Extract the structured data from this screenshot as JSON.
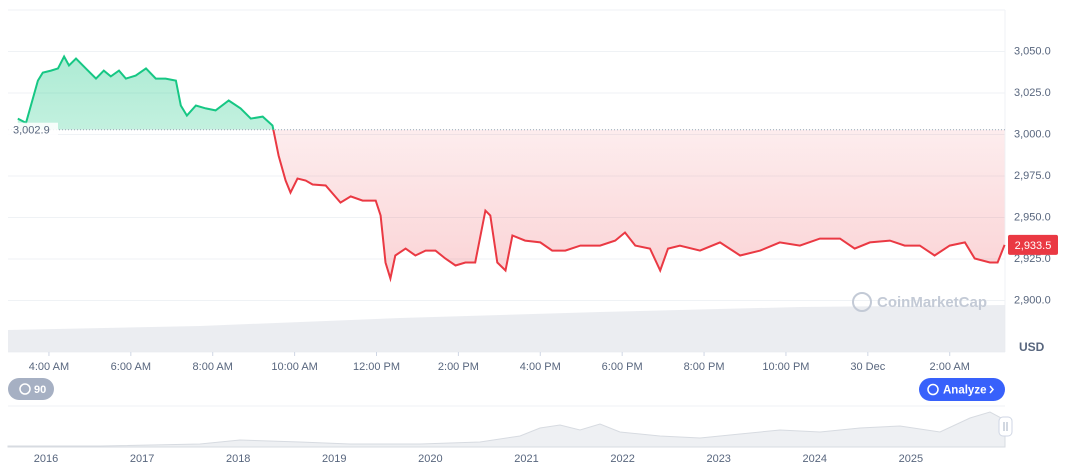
{
  "chart_data": {
    "type": "baseline-line",
    "x": [
      3.24,
      3.44,
      3.73,
      3.85,
      4.05,
      4.22,
      4.37,
      4.49,
      4.66,
      4.9,
      5.15,
      5.34,
      5.51,
      5.71,
      5.88,
      6.12,
      6.37,
      6.61,
      6.85,
      7.1,
      7.22,
      7.37,
      7.59,
      7.83,
      8.07,
      8.39,
      8.68,
      8.93,
      9.22,
      9.46,
      9.61,
      9.78,
      9.9,
      10.07,
      10.27,
      10.44,
      10.76,
      11.12,
      11.37,
      11.66,
      11.98,
      12.1,
      12.22,
      12.34,
      12.46,
      12.71,
      12.95,
      13.2,
      13.44,
      13.68,
      13.93,
      14.17,
      14.41,
      14.66,
      14.78,
      14.95,
      15.15,
      15.32,
      15.63,
      16.0,
      16.29,
      16.61,
      16.98,
      17.46,
      17.83,
      18.07,
      18.32,
      18.68,
      18.93,
      19.12,
      19.41,
      19.9,
      20.39,
      20.88,
      21.37,
      21.85,
      22.34,
      22.83,
      23.32,
      23.68,
      24.05,
      24.54,
      24.9,
      25.27,
      25.63,
      26.0,
      26.37,
      26.61,
      26.98,
      27.17,
      27.34
    ],
    "values": [
      3009.6,
      3007,
      3032.5,
      3037.3,
      3038.5,
      3039.8,
      3047,
      3041.6,
      3045.8,
      3039.8,
      3033.7,
      3038.5,
      3035,
      3038.5,
      3033.7,
      3035.5,
      3039.8,
      3033.7,
      3033.7,
      3032.5,
      3017.5,
      3011.4,
      3017.5,
      3015.7,
      3014.5,
      3020.5,
      3015.7,
      3009.6,
      3010.8,
      3005.4,
      2987.3,
      2972.3,
      2965,
      2973.5,
      2972.3,
      2969.9,
      2969.3,
      2959,
      2962.7,
      2960.2,
      2960.2,
      2951.2,
      2922.9,
      2913.3,
      2927.1,
      2931.3,
      2927.1,
      2930.1,
      2930.1,
      2925.3,
      2921.1,
      2922.9,
      2922.9,
      2954.2,
      2951.2,
      2922.9,
      2918.1,
      2939.2,
      2936.1,
      2935,
      2930.1,
      2930.1,
      2933.1,
      2933.1,
      2936.1,
      2941,
      2933.1,
      2931.3,
      2918.1,
      2931.3,
      2933.1,
      2930.1,
      2935,
      2927.1,
      2930.1,
      2935,
      2933.1,
      2937.3,
      2937.3,
      2931.3,
      2935,
      2936.1,
      2933.1,
      2933.1,
      2927.1,
      2933.1,
      2935,
      2925.3,
      2922.9,
      2922.9,
      2933.5
    ],
    "current_price_label": "2,933.5",
    "baseline": 3002.9,
    "baseline_label": "3,002.9",
    "up_color": "#16c784",
    "down_color": "#ea3943",
    "xlim": [
      3.0,
      27.35
    ],
    "ylim": [
      2869,
      3075
    ],
    "xticks": [
      {
        "value": 4,
        "label": "4:00 AM"
      },
      {
        "value": 6,
        "label": "6:00 AM"
      },
      {
        "value": 8,
        "label": "8:00 AM"
      },
      {
        "value": 10,
        "label": "10:00 AM"
      },
      {
        "value": 12,
        "label": "12:00 PM"
      },
      {
        "value": 14,
        "label": "2:00 PM"
      },
      {
        "value": 16,
        "label": "4:00 PM"
      },
      {
        "value": 18,
        "label": "6:00 PM"
      },
      {
        "value": 20,
        "label": "8:00 PM"
      },
      {
        "value": 22,
        "label": "10:00 PM"
      },
      {
        "value": 24,
        "label": "30 Dec"
      },
      {
        "value": 26,
        "label": "2:00 AM"
      }
    ],
    "yticks": [
      {
        "value": 2900,
        "label": "2,900.0"
      },
      {
        "value": 2925,
        "label": "2,925.0"
      },
      {
        "value": 2950,
        "label": "2,950.0"
      },
      {
        "value": 2975,
        "label": "2,975.0"
      },
      {
        "value": 3000,
        "label": "3,000.0"
      },
      {
        "value": 3025,
        "label": "3,025.0"
      },
      {
        "value": 3050,
        "label": "3,050.0"
      }
    ],
    "y_axis_label": "USD",
    "grid": true
  },
  "navigator": {
    "years": [
      "2016",
      "2017",
      "2018",
      "2019",
      "2020",
      "2021",
      "2022",
      "2023",
      "2024",
      "2025"
    ]
  },
  "ui": {
    "zoom_button": "90",
    "analyze_button": "Analyze",
    "watermark": "CoinMarketCap"
  }
}
